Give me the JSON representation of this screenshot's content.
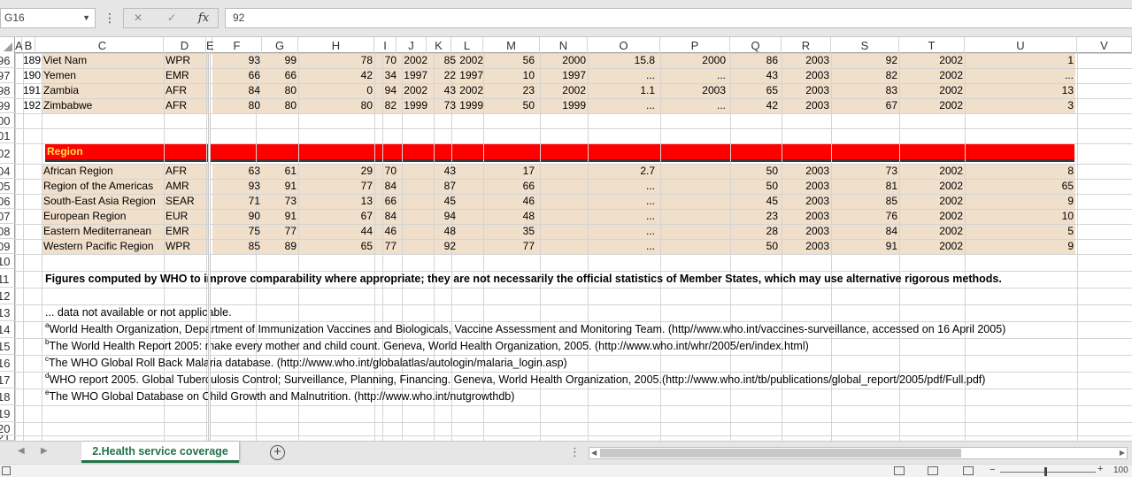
{
  "formula_bar": {
    "name_box": "G16",
    "formula": "92"
  },
  "columns": [
    "A",
    "B",
    "C",
    "D",
    "E",
    "F",
    "G",
    "H",
    "I",
    "J",
    "K",
    "L",
    "M",
    "N",
    "O",
    "P",
    "Q",
    "R",
    "S",
    "T",
    "U",
    "V"
  ],
  "row_headers": [
    "96",
    "97",
    "98",
    "99",
    "00",
    "01",
    "02",
    "04",
    "05",
    "06",
    "07",
    "08",
    "09",
    "10",
    "11",
    "12",
    "13",
    "14",
    "15",
    "16",
    "17",
    "18",
    "19",
    "20",
    "21"
  ],
  "country_rows": [
    [
      "189",
      "Viet Nam",
      "WPR",
      "93",
      "99",
      "78",
      "70",
      "2002",
      "85",
      "2002",
      "56",
      "2000",
      "15.8",
      "2000",
      "86",
      "2003",
      "92",
      "2002",
      "1"
    ],
    [
      "190",
      "Yemen",
      "EMR",
      "66",
      "66",
      "42",
      "34",
      "1997",
      "22",
      "1997",
      "10",
      "1997",
      "...",
      "...",
      "43",
      "2003",
      "82",
      "2002",
      "..."
    ],
    [
      "191",
      "Zambia",
      "AFR",
      "84",
      "80",
      "0",
      "94",
      "2002",
      "43",
      "2002",
      "23",
      "2002",
      "1.1",
      "2003",
      "65",
      "2003",
      "83",
      "2002",
      "13"
    ],
    [
      "192",
      "Zimbabwe",
      "AFR",
      "80",
      "80",
      "80",
      "82",
      "1999",
      "73",
      "1999",
      "50",
      "1999",
      "...",
      "...",
      "42",
      "2003",
      "67",
      "2002",
      "3"
    ]
  ],
  "region_label": "Region",
  "region_rows": [
    [
      "African Region",
      "AFR",
      "63",
      "61",
      "29",
      "70",
      "",
      "43",
      "",
      "17",
      "",
      "2.7",
      "",
      "50",
      "2003",
      "73",
      "2002",
      "8"
    ],
    [
      "Region of the Americas",
      "AMR",
      "93",
      "91",
      "77",
      "84",
      "",
      "87",
      "",
      "66",
      "",
      "...",
      "",
      "50",
      "2003",
      "81",
      "2002",
      "65"
    ],
    [
      "South-East Asia Region",
      "SEAR",
      "71",
      "73",
      "13",
      "66",
      "",
      "45",
      "",
      "46",
      "",
      "...",
      "",
      "45",
      "2003",
      "85",
      "2002",
      "9"
    ],
    [
      "European Region",
      "EUR",
      "90",
      "91",
      "67",
      "84",
      "",
      "94",
      "",
      "48",
      "",
      "...",
      "",
      "23",
      "2003",
      "76",
      "2002",
      "10"
    ],
    [
      "Eastern Mediterranean",
      "EMR",
      "75",
      "77",
      "44",
      "46",
      "",
      "48",
      "",
      "35",
      "",
      "...",
      "",
      "28",
      "2003",
      "84",
      "2002",
      "5"
    ],
    [
      "Western Pacific Region",
      "WPR",
      "85",
      "89",
      "65",
      "77",
      "",
      "92",
      "",
      "77",
      "",
      "...",
      "",
      "50",
      "2003",
      "91",
      "2002",
      "9"
    ]
  ],
  "notes": {
    "bold_note": "Figures computed by WHO to improve comparability where appropriate; they are not necessarily the official statistics of Member States, which may use alternative rigorous methods.",
    "na": "... data not available or not applicable.",
    "refs": [
      {
        "sup": "a",
        "text": "World Health Organization, Department of Immunization Vaccines and Biologicals, Vaccine Assessment and Monitoring Team. (http//www.who.int/vaccines-surveillance, accessed on 16 April 2005)"
      },
      {
        "sup": "b",
        "text": "The World Health Report 2005: make every mother and child count. Geneva, World Health Organization, 2005. (http://www.who.int/whr/2005/en/index.html)"
      },
      {
        "sup": "c",
        "text": "The WHO Global Roll Back Malaria database. (http://www.who.int/globalatlas/autologin/malaria_login.asp)"
      },
      {
        "sup": "d",
        "text": "WHO report 2005. Global Tuberculosis Control; Surveillance, Planning, Financing. Geneva, World Health Organization, 2005.(http://www.who.int/tb/publications/global_report/2005/pdf/Full.pdf)"
      },
      {
        "sup": "e",
        "text": "The WHO Global Database on Child Growth and Malnutrition. (http://www.who.int/nutgrowthdb)"
      }
    ]
  },
  "sheet_tab": "2.Health service coverage",
  "status": {
    "zoom": "100"
  },
  "colors": {
    "region_bar": "#ff0000",
    "region_text": "#ffe24a",
    "band": "#f0dfcb",
    "tab_accent": "#217346"
  }
}
